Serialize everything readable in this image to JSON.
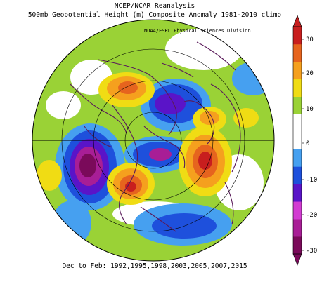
{
  "title_line1": "NCEP/NCAR Reanalysis",
  "title_line2": "500mb Geopotential Height (m) Composite Anomaly 1981-2010 climo",
  "credit": "NOAA/ESRL Physical Sciences Division",
  "footer": "Dec to Feb: 1992,1995,1998,2003,2005,2007,2015",
  "colorbar": {
    "ticks": [
      "30",
      "20",
      "10",
      "0",
      "-10",
      "-20",
      "-30"
    ],
    "colors": [
      "#7a0a5a",
      "#a81e96",
      "#d23cd2",
      "#5a14c8",
      "#1e50dc",
      "#46a0f0",
      "#ffffff",
      "#ffffff",
      "#9ad236",
      "#f0dc14",
      "#f5a01e",
      "#e6641e",
      "#c81e1e"
    ]
  },
  "colors": {
    "positive_strong": "#c81e1e",
    "positive": "#f5a01e",
    "weak_positive": "#9ad236",
    "neutral": "#ffffff",
    "negative_weak": "#46a0f0",
    "negative": "#1e50dc",
    "negative_strong": "#7a0a5a",
    "coastline": "#5a1a5a"
  }
}
